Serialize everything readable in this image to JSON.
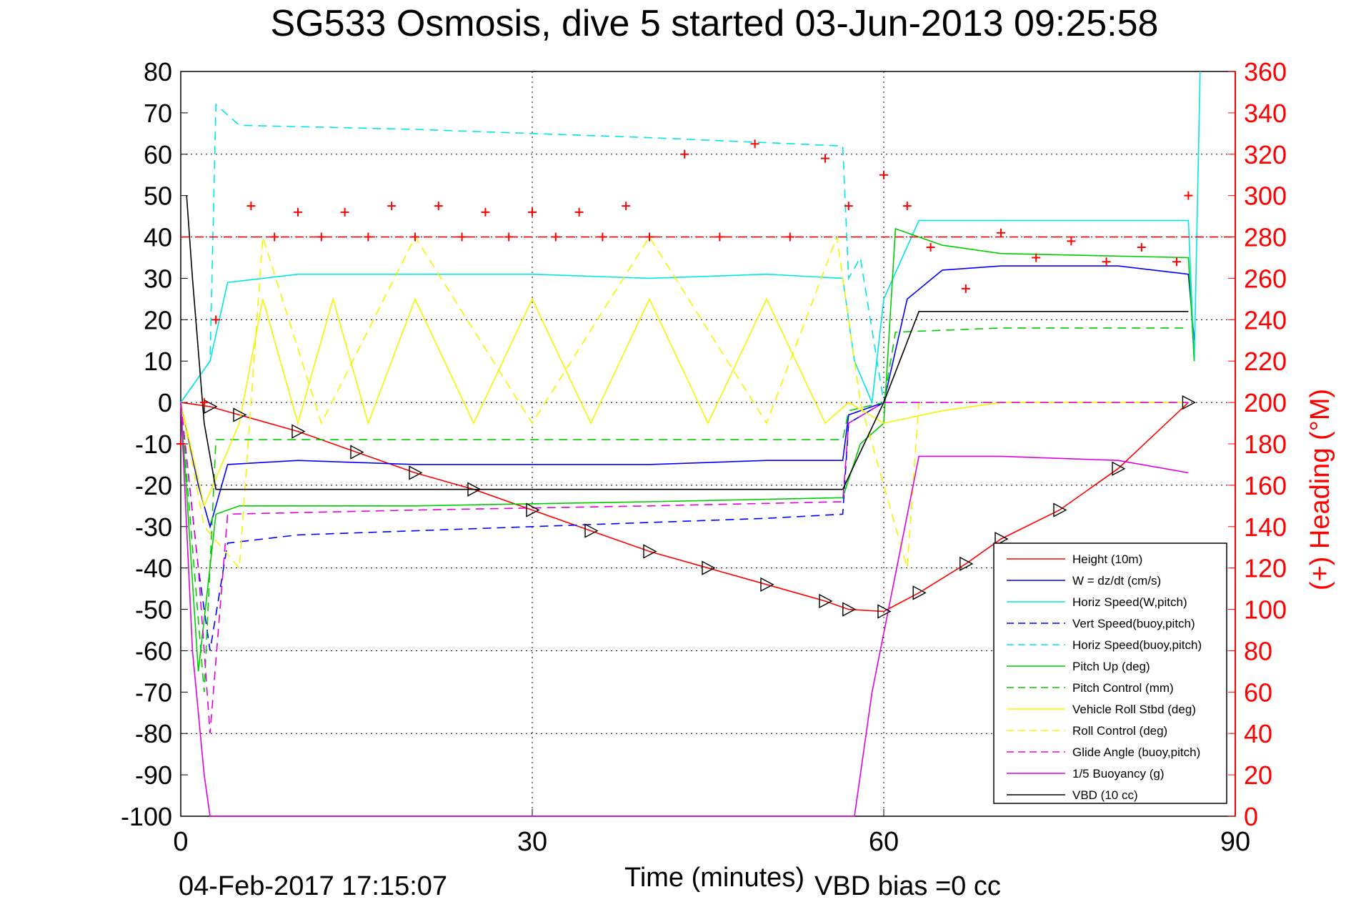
{
  "chart_data": {
    "type": "line",
    "title": "SG533 Osmosis, dive 5 started 03-Jun-2013 09:25:58",
    "xlabel": "Time (minutes)",
    "ylabel": "",
    "y2label": "(+) Heading (°M)",
    "xlim": [
      0,
      90
    ],
    "ylim": [
      -100,
      80
    ],
    "y2lim": [
      0,
      360
    ],
    "xticks": [
      "0",
      "30",
      "60",
      "90"
    ],
    "yticks": [
      "80",
      "70",
      "60",
      "50",
      "40",
      "30",
      "20",
      "10",
      "0",
      "-10",
      "-20",
      "-30",
      "-40",
      "-50",
      "-60",
      "-70",
      "-80",
      "-90",
      "-100"
    ],
    "y2ticks": [
      "360",
      "340",
      "320",
      "300",
      "280",
      "260",
      "240",
      "220",
      "200",
      "180",
      "160",
      "140",
      "120",
      "100",
      "80",
      "60",
      "40",
      "20",
      "0"
    ],
    "grid": true,
    "legend_position": "bottom-right",
    "footer_left": "04-Feb-2017 17:15:07",
    "footer_right": "VBD bias =0 cc",
    "colors": {
      "red": "#ff0000",
      "blue": "#0000ff",
      "cyan": "#00e5e5",
      "green": "#00cc00",
      "yellow": "#f5f500",
      "magenta": "#e000e0",
      "black": "#000000"
    },
    "series": [
      {
        "name": "Height (10m)",
        "color": "#ff0000",
        "style": "solid",
        "x": [
          0,
          2.5,
          5,
          10,
          15,
          20,
          25,
          30,
          35,
          40,
          45,
          50,
          55,
          57,
          60,
          63,
          67,
          70,
          75,
          80,
          86
        ],
        "y": [
          0,
          -1,
          -3,
          -7,
          -12,
          -17,
          -21,
          -26,
          -31,
          -36,
          -40,
          -44,
          -48,
          -50,
          -50.5,
          -46,
          -39,
          -33,
          -26,
          -16,
          0
        ]
      },
      {
        "name": "W = dz/dt (cm/s)",
        "color": "#0000ff",
        "style": "solid",
        "x": [
          0,
          1.5,
          2.5,
          4,
          10,
          20,
          30,
          40,
          50,
          56.5,
          57,
          60,
          62,
          65,
          70,
          80,
          86,
          86.5
        ],
        "y": [
          0,
          -20,
          -30,
          -15,
          -14,
          -15,
          -15,
          -15,
          -14,
          -14,
          -3,
          0,
          25,
          32,
          33,
          33,
          31,
          15
        ]
      },
      {
        "name": "Horiz Speed(W,pitch)",
        "color": "#00e5e5",
        "style": "solid",
        "x": [
          0,
          2.5,
          4,
          10,
          20,
          30,
          40,
          50,
          56.5,
          57.5,
          59,
          60,
          63,
          70,
          80,
          86,
          86.5,
          87
        ],
        "y": [
          0,
          10,
          29,
          31,
          31,
          31,
          30,
          31,
          30,
          10,
          0,
          25,
          44,
          44,
          44,
          44,
          10,
          80
        ]
      },
      {
        "name": "Vert Speed(buoy,pitch)",
        "color": "#0000ff",
        "style": "dashed",
        "x": [
          0,
          1.5,
          2.5,
          4,
          10,
          20,
          30,
          40,
          50,
          56.5,
          57,
          60
        ],
        "y": [
          0,
          -40,
          -60,
          -34,
          -32,
          -31,
          -30,
          -29,
          -28,
          -27,
          -5,
          0
        ]
      },
      {
        "name": "Horiz Speed(buoy,pitch)",
        "color": "#00e5e5",
        "style": "dashed",
        "x": [
          0,
          2.5,
          3,
          5,
          20,
          40,
          56.5,
          57,
          58,
          60
        ],
        "y": [
          0,
          10,
          72,
          67,
          66,
          64,
          62,
          30,
          35,
          0
        ]
      },
      {
        "name": "Pitch Up (deg)",
        "color": "#00cc00",
        "style": "solid",
        "x": [
          0,
          1.5,
          3,
          5,
          20,
          40,
          56.5,
          58,
          60,
          61,
          65,
          70,
          86,
          86.5
        ],
        "y": [
          0,
          -65,
          -27,
          -25,
          -25,
          -24,
          -23,
          -10,
          -5,
          42,
          38,
          36,
          35,
          10
        ]
      },
      {
        "name": "Pitch Control (mm)",
        "color": "#00cc00",
        "style": "dashed",
        "x": [
          0,
          2,
          3,
          20,
          40,
          56.5,
          57,
          60,
          61,
          70,
          86
        ],
        "y": [
          0,
          -70,
          -9,
          -9,
          -9,
          -9,
          -2,
          0,
          17,
          18,
          18
        ]
      },
      {
        "name": "Vehicle Roll Stbd (deg)",
        "color": "#f5f500",
        "style": "solid",
        "x": [
          0,
          2,
          5,
          7,
          10,
          13,
          16,
          20,
          25,
          30,
          35,
          40,
          45,
          50,
          55,
          57,
          60,
          65,
          70,
          80,
          86
        ],
        "y": [
          0,
          -25,
          -5,
          25,
          -5,
          25,
          -5,
          25,
          -5,
          25,
          -5,
          25,
          -5,
          25,
          -5,
          0,
          -5,
          -2,
          0,
          0,
          0
        ]
      },
      {
        "name": "Roll Control (deg)",
        "color": "#f5f500",
        "style": "dashed",
        "x": [
          0,
          2,
          5,
          7,
          12,
          20,
          30,
          40,
          50,
          56,
          58,
          62,
          63,
          65,
          86
        ],
        "y": [
          0,
          -30,
          -40,
          40,
          -5,
          40,
          -5,
          40,
          -5,
          40,
          0,
          -40,
          0,
          0,
          0
        ]
      },
      {
        "name": "Glide Angle (buoy,pitch)",
        "color": "#e000e0",
        "style": "dashed",
        "x": [
          0,
          1.5,
          2.5,
          4,
          20,
          40,
          56.5,
          57,
          60,
          86
        ],
        "y": [
          0,
          -40,
          -80,
          -27,
          -26,
          -25,
          -24,
          -5,
          0,
          0
        ]
      },
      {
        "name": "1/5 Buoyancy (g)",
        "color": "#e000e0",
        "style": "solid",
        "x": [
          0,
          1,
          2,
          2.5,
          57.5,
          59,
          63,
          70,
          80,
          86
        ],
        "y": [
          0,
          -60,
          -90,
          -100,
          -100,
          -70,
          -13,
          -13,
          -14,
          -17
        ]
      },
      {
        "name": "VBD (10 cc)",
        "color": "#000000",
        "style": "solid",
        "x": [
          0.5,
          1,
          2,
          3,
          56.5,
          60,
          63,
          86
        ],
        "y": [
          50,
          30,
          -5,
          -21,
          -21,
          0,
          22,
          22
        ]
      }
    ],
    "heading": {
      "name": "(+) Heading (°M)",
      "color": "#ff0000",
      "axis": "right",
      "target": 280,
      "x": [
        0,
        2,
        3,
        6,
        8,
        10,
        12,
        14,
        16,
        18,
        20,
        22,
        24,
        26,
        28,
        30,
        32,
        34,
        36,
        38,
        40,
        43,
        46,
        49,
        52,
        55,
        57,
        60,
        62,
        64,
        67,
        70,
        73,
        76,
        79,
        82,
        85,
        86
      ],
      "y": [
        180,
        200,
        240,
        295,
        280,
        292,
        280,
        292,
        280,
        295,
        280,
        295,
        280,
        292,
        280,
        292,
        280,
        292,
        280,
        295,
        280,
        320,
        280,
        325,
        280,
        318,
        295,
        310,
        295,
        275,
        255,
        282,
        270,
        278,
        268,
        275,
        268,
        300
      ]
    }
  }
}
